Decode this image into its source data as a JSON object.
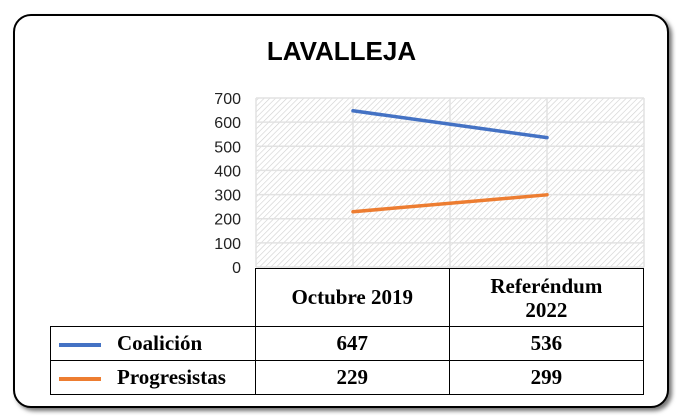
{
  "chart_data": {
    "type": "line",
    "title": "LAVALLEJA",
    "categories": [
      "Octubre 2019",
      "Referéndum 2022"
    ],
    "category_lines": [
      [
        "Octubre 2019"
      ],
      [
        "Referéndum",
        "2022"
      ]
    ],
    "series": [
      {
        "name": "Coalición",
        "values": [
          647,
          536
        ],
        "color": "#4472C4"
      },
      {
        "name": "Progresistas",
        "values": [
          229,
          299
        ],
        "color": "#ED7D31"
      }
    ],
    "ylim": [
      0,
      700
    ],
    "yticks": [
      0,
      100,
      200,
      300,
      400,
      500,
      600,
      700
    ],
    "xlabel": "",
    "ylabel": "",
    "grid": true,
    "legend": "data-table"
  }
}
